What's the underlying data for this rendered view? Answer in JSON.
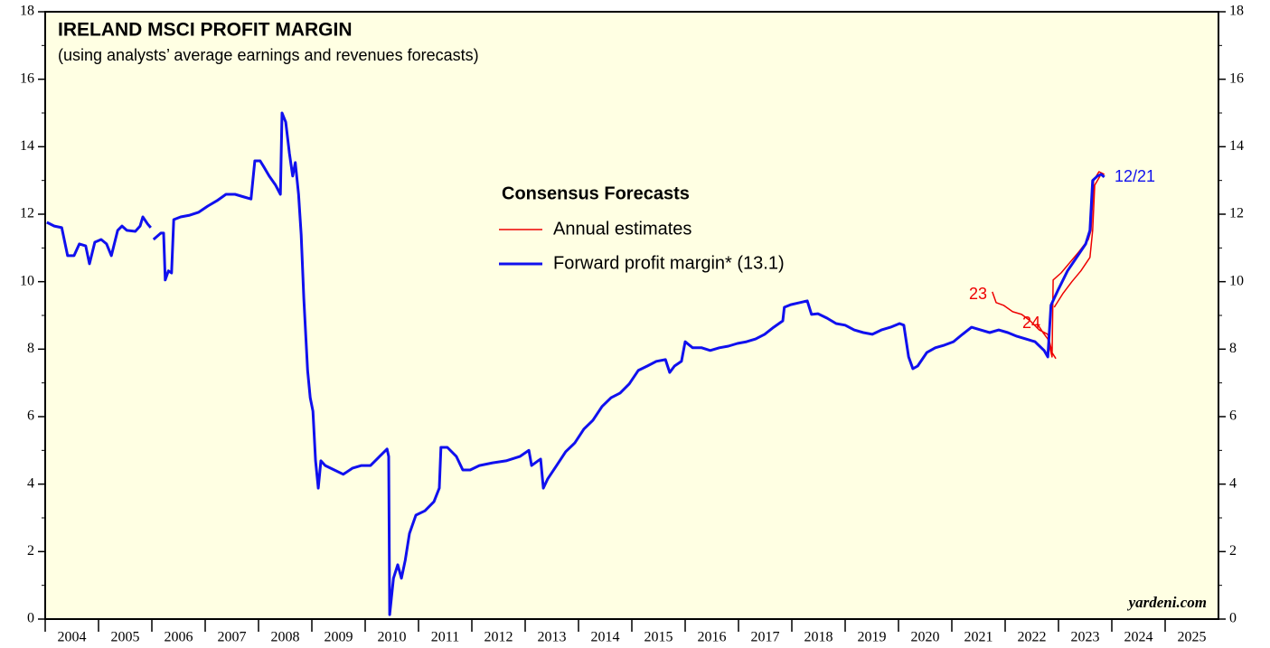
{
  "chart_data": {
    "type": "line",
    "title": "IRELAND MSCI PROFIT MARGIN",
    "subtitle": "(using analysts’ average earnings and revenues forecasts)",
    "legend_title": "Consensus Forecasts",
    "source": "yardeni.com",
    "background": "#ffffe3",
    "years": [
      2004,
      2005,
      2006,
      2007,
      2008,
      2009,
      2010,
      2011,
      2012,
      2013,
      2014,
      2015,
      2016,
      2017,
      2018,
      2019,
      2020,
      2021,
      2022,
      2023,
      2024,
      2025
    ],
    "xlim": [
      2004,
      2026
    ],
    "ylim": [
      0,
      18
    ],
    "yticks": [
      0,
      2,
      4,
      6,
      8,
      10,
      12,
      14,
      16,
      18
    ],
    "annotations": [
      {
        "text": "23",
        "color": "#ee0000"
      },
      {
        "text": "24",
        "color": "#ee0000"
      },
      {
        "text": "12/21",
        "color": "#1010ee"
      }
    ],
    "series": [
      {
        "name": "Annual estimates",
        "color": "#ee0000",
        "width": 1.5,
        "x": [
          2021.76,
          2021.83,
          2021.97,
          2022.14,
          2022.31,
          2022.47,
          2022.64,
          2022.8,
          2022.88,
          2022.95,
          null,
          2022.6,
          2022.71,
          2022.8,
          2022.88,
          2022.9,
          2023.05,
          2023.22,
          2023.39,
          2023.56,
          2023.61,
          2023.66,
          2023.76,
          2023.86,
          null,
          2022.92,
          2023.08,
          2023.25,
          2023.42,
          2023.59,
          2023.64,
          2023.68,
          2023.78
        ],
        "values": [
          9.7,
          9.38,
          9.3,
          9.11,
          9.03,
          8.84,
          8.57,
          8.44,
          7.9,
          7.72,
          null,
          8.76,
          8.49,
          8.3,
          7.77,
          10.05,
          10.26,
          10.58,
          10.9,
          11.25,
          11.52,
          13.0,
          13.26,
          13.18,
          null,
          9.24,
          9.64,
          10.0,
          10.32,
          10.72,
          11.52,
          12.86,
          13.13
        ]
      },
      {
        "name": "Forward profit margin* (13.1)",
        "color": "#1010ee",
        "width": 3,
        "x": [
          2004.03,
          2004.17,
          2004.31,
          2004.42,
          2004.54,
          2004.64,
          2004.76,
          2004.83,
          2004.93,
          2005.05,
          2005.15,
          2005.24,
          2005.36,
          2005.44,
          2005.53,
          2005.69,
          2005.78,
          2005.83,
          2005.92,
          2005.98,
          2006.0,
          2006.03,
          2006.17,
          2006.22,
          2006.25,
          2006.31,
          2006.37,
          2006.41,
          2006.54,
          2006.71,
          2006.88,
          2007.05,
          2007.22,
          2007.39,
          2007.56,
          2007.73,
          2007.86,
          2007.93,
          2008.03,
          2008.1,
          2008.2,
          2008.32,
          2008.41,
          2008.44,
          2008.51,
          2008.58,
          2008.64,
          2008.69,
          2008.75,
          2008.8,
          2008.85,
          2008.92,
          2008.97,
          2009.02,
          2009.07,
          2009.12,
          2009.17,
          2009.25,
          2009.42,
          2009.59,
          2009.76,
          2009.93,
          2010.1,
          2010.27,
          2010.41,
          2010.44,
          2010.46,
          2010.53,
          2010.61,
          2010.68,
          2010.75,
          2010.83,
          2010.95,
          2011.12,
          2011.29,
          2011.39,
          2011.42,
          2011.54,
          2011.71,
          2011.83,
          2011.97,
          2012.14,
          2012.39,
          2012.64,
          2012.9,
          2013.07,
          2013.12,
          2013.24,
          2013.29,
          2013.34,
          2013.42,
          2013.59,
          2013.76,
          2013.93,
          2014.1,
          2014.27,
          2014.44,
          2014.61,
          2014.78,
          2014.95,
          2015.12,
          2015.29,
          2015.46,
          2015.63,
          2015.71,
          2015.8,
          2015.93,
          2016.0,
          2016.14,
          2016.31,
          2016.47,
          2016.64,
          2016.81,
          2016.98,
          2017.15,
          2017.32,
          2017.49,
          2017.66,
          2017.83,
          2017.86,
          2017.98,
          2018.15,
          2018.29,
          2018.37,
          2018.49,
          2018.66,
          2018.83,
          2019.0,
          2019.17,
          2019.34,
          2019.51,
          2019.68,
          2019.85,
          2020.02,
          2020.1,
          2020.19,
          2020.27,
          2020.36,
          2020.53,
          2020.69,
          2020.86,
          2021.03,
          2021.2,
          2021.37,
          2021.54,
          2021.71,
          2021.88,
          2022.05,
          2022.22,
          2022.39,
          2022.56,
          2022.73,
          2022.8,
          2022.86,
          2023.0,
          2023.17,
          2023.34,
          2023.51,
          2023.59,
          2023.64,
          2023.73,
          2023.8,
          2023.86
        ],
        "values": [
          11.76,
          11.65,
          11.6,
          10.77,
          10.77,
          11.12,
          11.06,
          10.53,
          11.17,
          11.25,
          11.12,
          10.77,
          11.52,
          11.65,
          11.52,
          11.49,
          11.65,
          11.92,
          11.71,
          11.6,
          null,
          11.25,
          11.44,
          11.44,
          10.05,
          10.32,
          10.26,
          11.84,
          11.92,
          11.97,
          12.06,
          12.24,
          12.4,
          12.59,
          12.59,
          12.51,
          12.45,
          13.58,
          13.58,
          13.4,
          13.13,
          12.86,
          12.59,
          15.0,
          14.73,
          13.8,
          13.13,
          13.53,
          12.59,
          11.39,
          9.51,
          7.37,
          6.56,
          6.16,
          4.69,
          3.88,
          4.69,
          4.55,
          4.42,
          4.29,
          4.47,
          4.55,
          4.55,
          4.82,
          5.04,
          4.82,
          0.13,
          1.21,
          1.61,
          1.21,
          1.74,
          2.54,
          3.08,
          3.21,
          3.48,
          3.88,
          5.09,
          5.09,
          4.82,
          4.42,
          4.42,
          4.55,
          4.63,
          4.69,
          4.82,
          5.0,
          4.55,
          4.69,
          4.74,
          3.88,
          4.15,
          4.55,
          4.96,
          5.22,
          5.63,
          5.89,
          6.3,
          6.56,
          6.7,
          6.97,
          7.37,
          7.5,
          7.64,
          7.69,
          7.31,
          7.5,
          7.64,
          8.22,
          8.04,
          8.04,
          7.96,
          8.04,
          8.09,
          8.17,
          8.22,
          8.3,
          8.44,
          8.65,
          8.84,
          9.24,
          9.32,
          9.38,
          9.43,
          9.03,
          9.05,
          8.92,
          8.76,
          8.71,
          8.57,
          8.49,
          8.44,
          8.57,
          8.65,
          8.76,
          8.71,
          7.77,
          7.42,
          7.5,
          7.9,
          8.04,
          8.12,
          8.22,
          8.44,
          8.65,
          8.57,
          8.49,
          8.57,
          8.49,
          8.38,
          8.3,
          8.22,
          7.96,
          7.77,
          9.3,
          9.78,
          10.32,
          10.72,
          11.12,
          11.52,
          13.0,
          13.13,
          13.18,
          13.1
        ]
      }
    ]
  }
}
